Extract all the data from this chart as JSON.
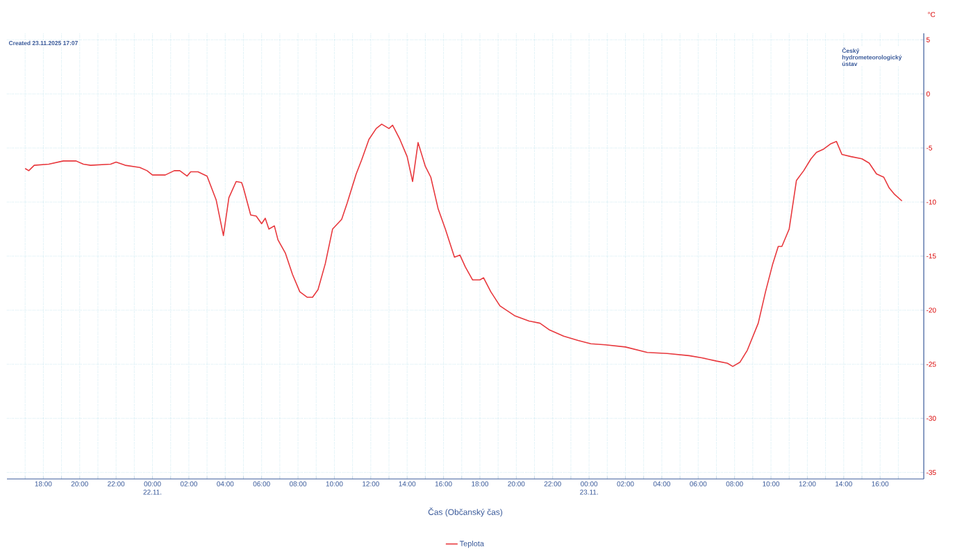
{
  "chart_data": {
    "type": "line",
    "xlabel": "Čas (Občanský čas)",
    "ylabel": "°C",
    "annotations": [
      "Created 23.11.2025 17:07",
      "Český hydrometeorologický ústav"
    ],
    "x": [
      "2025-11-21T17:00",
      "2025-11-21T17:12",
      "2025-11-21T17:30",
      "2025-11-21T18:18",
      "2025-11-21T19:06",
      "2025-11-21T19:48",
      "2025-11-21T20:12",
      "2025-11-21T20:36",
      "2025-11-21T21:42",
      "2025-11-21T22:00",
      "2025-11-21T22:30",
      "2025-11-21T23:18",
      "2025-11-21T23:42",
      "2025-11-22T00:00",
      "2025-11-22T00:42",
      "2025-11-22T01:12",
      "2025-11-22T01:30",
      "2025-11-22T01:54",
      "2025-11-22T02:06",
      "2025-11-22T02:30",
      "2025-11-22T03:00",
      "2025-11-22T03:30",
      "2025-11-22T03:54",
      "2025-11-22T04:12",
      "2025-11-22T04:36",
      "2025-11-22T04:54",
      "2025-11-22T05:00",
      "2025-11-22T05:24",
      "2025-11-22T05:42",
      "2025-11-22T06:00",
      "2025-11-22T06:12",
      "2025-11-22T06:24",
      "2025-11-22T06:42",
      "2025-11-22T06:54",
      "2025-11-22T07:18",
      "2025-11-22T07:42",
      "2025-11-22T08:06",
      "2025-11-22T08:30",
      "2025-11-22T08:48",
      "2025-11-22T09:06",
      "2025-11-22T09:30",
      "2025-11-22T09:54",
      "2025-11-22T10:24",
      "2025-11-22T10:42",
      "2025-11-22T11:12",
      "2025-11-22T11:30",
      "2025-11-22T11:54",
      "2025-11-22T12:18",
      "2025-11-22T12:36",
      "2025-11-22T13:00",
      "2025-11-22T13:12",
      "2025-11-22T13:36",
      "2025-11-22T14:00",
      "2025-11-22T14:18",
      "2025-11-22T14:36",
      "2025-11-22T15:00",
      "2025-11-22T15:18",
      "2025-11-22T15:42",
      "2025-11-22T16:06",
      "2025-11-22T16:36",
      "2025-11-22T16:54",
      "2025-11-22T17:12",
      "2025-11-22T17:36",
      "2025-11-22T18:00",
      "2025-11-22T18:12",
      "2025-11-22T18:36",
      "2025-11-22T19:06",
      "2025-11-22T19:54",
      "2025-11-22T20:42",
      "2025-11-22T21:18",
      "2025-11-22T21:48",
      "2025-11-22T22:36",
      "2025-11-22T23:24",
      "2025-11-23T00:06",
      "2025-11-23T00:54",
      "2025-11-23T02:00",
      "2025-11-23T03:12",
      "2025-11-23T04:18",
      "2025-11-23T05:30",
      "2025-11-23T06:12",
      "2025-11-23T07:00",
      "2025-11-23T07:36",
      "2025-11-23T07:54",
      "2025-11-23T08:18",
      "2025-11-23T08:42",
      "2025-11-23T09:18",
      "2025-11-23T09:42",
      "2025-11-23T10:06",
      "2025-11-23T10:24",
      "2025-11-23T10:36",
      "2025-11-23T11:00",
      "2025-11-23T11:24",
      "2025-11-23T11:48",
      "2025-11-23T12:12",
      "2025-11-23T12:30",
      "2025-11-23T12:54",
      "2025-11-23T13:18",
      "2025-11-23T13:36",
      "2025-11-23T13:54",
      "2025-11-23T14:24",
      "2025-11-23T15:00",
      "2025-11-23T15:24",
      "2025-11-23T15:48",
      "2025-11-23T16:12",
      "2025-11-23T16:30",
      "2025-11-23T16:48",
      "2025-11-23T17:12"
    ],
    "series": [
      {
        "name": "Teplota",
        "color": "#e8383d",
        "values": [
          -6.9,
          -7.1,
          -6.6,
          -6.5,
          -6.2,
          -6.2,
          -6.5,
          -6.6,
          -6.5,
          -6.3,
          -6.6,
          -6.8,
          -7.1,
          -7.5,
          -7.5,
          -7.1,
          -7.1,
          -7.6,
          -7.2,
          -7.2,
          -7.6,
          -9.8,
          -13.1,
          -9.6,
          -8.1,
          -8.2,
          -8.7,
          -11.2,
          -11.3,
          -12.0,
          -11.5,
          -12.5,
          -12.2,
          -13.5,
          -14.7,
          -16.7,
          -18.3,
          -18.8,
          -18.8,
          -18.1,
          -15.7,
          -12.5,
          -11.6,
          -10.1,
          -7.4,
          -6.1,
          -4.2,
          -3.2,
          -2.8,
          -3.2,
          -2.9,
          -4.2,
          -5.8,
          -8.1,
          -4.5,
          -6.7,
          -7.7,
          -10.6,
          -12.5,
          -15.1,
          -14.9,
          -16.0,
          -17.2,
          -17.2,
          -17.0,
          -18.3,
          -19.6,
          -20.5,
          -21.0,
          -21.2,
          -21.8,
          -22.4,
          -22.8,
          -23.1,
          -23.2,
          -23.4,
          -23.9,
          -24.0,
          -24.2,
          -24.4,
          -24.7,
          -24.9,
          -25.2,
          -24.8,
          -23.7,
          -21.2,
          -18.3,
          -15.7,
          -14.1,
          -14.1,
          -12.5,
          -8.0,
          -7.1,
          -6.0,
          -5.4,
          -5.1,
          -4.6,
          -4.4,
          -5.6,
          -5.8,
          -6.0,
          -6.4,
          -7.4,
          -7.7,
          -8.7,
          -9.3,
          -9.9
        ]
      }
    ],
    "xlim": [
      "2025-11-21T16:00",
      "2025-11-23T18:24"
    ],
    "ylim": [
      -35.6,
      5.6
    ],
    "xticks": [
      {
        "value": "2025-11-21T17:00",
        "label": null
      },
      {
        "value": "2025-11-21T18:00",
        "label": "18:00"
      },
      {
        "value": "2025-11-21T19:00",
        "label": null
      },
      {
        "value": "2025-11-21T20:00",
        "label": "20:00"
      },
      {
        "value": "2025-11-21T21:00",
        "label": null
      },
      {
        "value": "2025-11-21T22:00",
        "label": "22:00"
      },
      {
        "value": "2025-11-21T23:00",
        "label": null
      },
      {
        "value": "2025-11-22T00:00",
        "label": "00:00 22.11."
      },
      {
        "value": "2025-11-22T01:00",
        "label": null
      },
      {
        "value": "2025-11-22T02:00",
        "label": "02:00"
      },
      {
        "value": "2025-11-22T03:00",
        "label": null
      },
      {
        "value": "2025-11-22T04:00",
        "label": "04:00"
      },
      {
        "value": "2025-11-22T05:00",
        "label": null
      },
      {
        "value": "2025-11-22T06:00",
        "label": "06:00"
      },
      {
        "value": "2025-11-22T07:00",
        "label": null
      },
      {
        "value": "2025-11-22T08:00",
        "label": "08:00"
      },
      {
        "value": "2025-11-22T09:00",
        "label": null
      },
      {
        "value": "2025-11-22T10:00",
        "label": "10:00"
      },
      {
        "value": "2025-11-22T11:00",
        "label": null
      },
      {
        "value": "2025-11-22T12:00",
        "label": "12:00"
      },
      {
        "value": "2025-11-22T13:00",
        "label": null
      },
      {
        "value": "2025-11-22T14:00",
        "label": "14:00"
      },
      {
        "value": "2025-11-22T15:00",
        "label": null
      },
      {
        "value": "2025-11-22T16:00",
        "label": "16:00"
      },
      {
        "value": "2025-11-22T17:00",
        "label": null
      },
      {
        "value": "2025-11-22T18:00",
        "label": "18:00"
      },
      {
        "value": "2025-11-22T19:00",
        "label": null
      },
      {
        "value": "2025-11-22T20:00",
        "label": "20:00"
      },
      {
        "value": "2025-11-22T21:00",
        "label": null
      },
      {
        "value": "2025-11-22T22:00",
        "label": "22:00"
      },
      {
        "value": "2025-11-22T23:00",
        "label": null
      },
      {
        "value": "2025-11-23T00:00",
        "label": "00:00 23.11."
      },
      {
        "value": "2025-11-23T01:00",
        "label": null
      },
      {
        "value": "2025-11-23T02:00",
        "label": "02:00"
      },
      {
        "value": "2025-11-23T03:00",
        "label": null
      },
      {
        "value": "2025-11-23T04:00",
        "label": "04:00"
      },
      {
        "value": "2025-11-23T05:00",
        "label": null
      },
      {
        "value": "2025-11-23T06:00",
        "label": "06:00"
      },
      {
        "value": "2025-11-23T07:00",
        "label": null
      },
      {
        "value": "2025-11-23T08:00",
        "label": "08:00"
      },
      {
        "value": "2025-11-23T09:00",
        "label": null
      },
      {
        "value": "2025-11-23T10:00",
        "label": "10:00"
      },
      {
        "value": "2025-11-23T11:00",
        "label": null
      },
      {
        "value": "2025-11-23T12:00",
        "label": "12:00"
      },
      {
        "value": "2025-11-23T13:00",
        "label": null
      },
      {
        "value": "2025-11-23T14:00",
        "label": "14:00"
      },
      {
        "value": "2025-11-23T15:00",
        "label": null
      },
      {
        "value": "2025-11-23T16:00",
        "label": "16:00"
      },
      {
        "value": "2025-11-23T17:00",
        "label": null
      }
    ],
    "yticks": [
      5,
      0,
      -5,
      -10,
      -15,
      -20,
      -25,
      -30,
      -35
    ],
    "grid": true,
    "legend": "bottom",
    "marker": "none",
    "line_style": "solid"
  }
}
